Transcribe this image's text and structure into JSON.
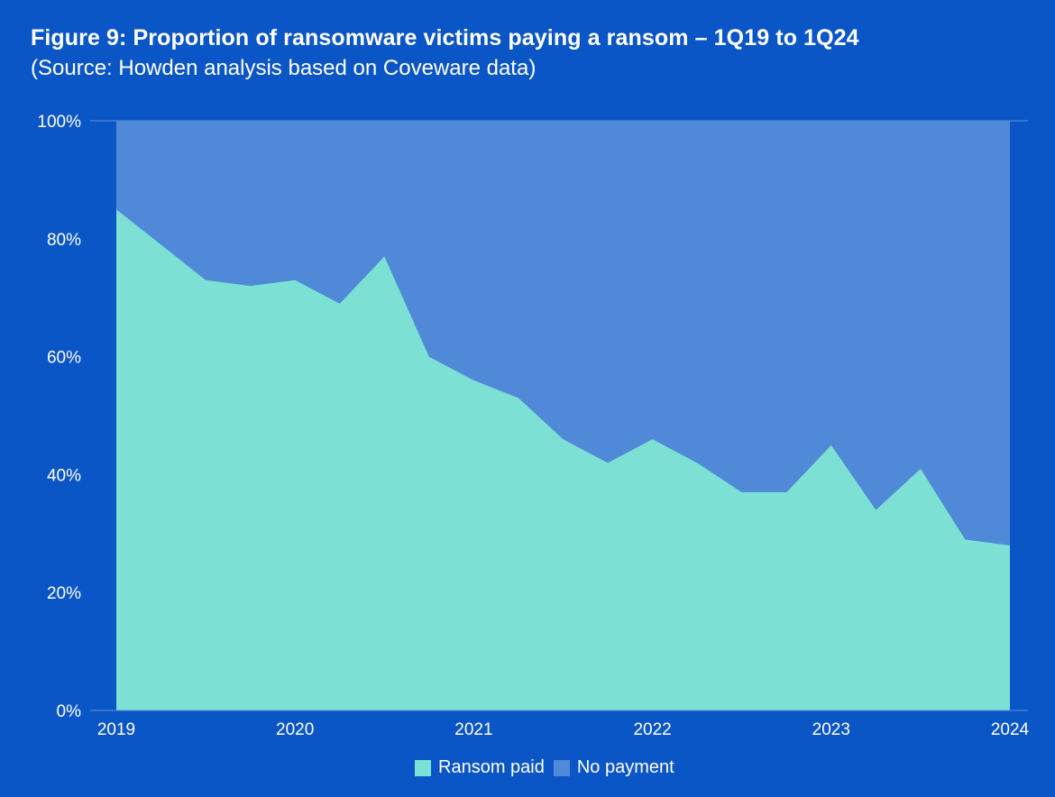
{
  "header": {
    "title": "Figure 9: Proportion of ransomware victims paying a ransom – 1Q19 to 1Q24",
    "subtitle": "(Source: Howden analysis based on Coveware data)"
  },
  "colors": {
    "paid": "#7ce0d4",
    "no_payment": "#5089d8",
    "background": "#0b56c6"
  },
  "chart_data": {
    "type": "area",
    "title": "Figure 9: Proportion of ransomware victims paying a ransom – 1Q19 to 1Q24",
    "stacked": true,
    "quarters": [
      "1Q19",
      "2Q19",
      "3Q19",
      "4Q19",
      "1Q20",
      "2Q20",
      "3Q20",
      "4Q20",
      "1Q21",
      "2Q21",
      "3Q21",
      "4Q21",
      "1Q22",
      "2Q22",
      "3Q22",
      "4Q22",
      "1Q23",
      "2Q23",
      "3Q23",
      "4Q23",
      "1Q24"
    ],
    "x_ticks": [
      "2019",
      "2020",
      "2021",
      "2022",
      "2023",
      "2024"
    ],
    "y_ticks": [
      "0%",
      "20%",
      "40%",
      "60%",
      "80%",
      "100%"
    ],
    "ylim": [
      0,
      100
    ],
    "series": [
      {
        "name": "Ransom paid",
        "values": [
          85,
          79,
          73,
          72,
          73,
          69,
          77,
          60,
          56,
          53,
          46,
          42,
          46,
          42,
          37,
          37,
          45,
          34,
          41,
          29,
          28
        ]
      },
      {
        "name": "No payment",
        "values": [
          15,
          21,
          27,
          28,
          27,
          31,
          23,
          40,
          44,
          47,
          54,
          58,
          54,
          58,
          63,
          63,
          55,
          66,
          59,
          71,
          72
        ]
      }
    ],
    "legend": [
      "Ransom paid",
      "No payment"
    ],
    "legend_position": "bottom-center"
  }
}
